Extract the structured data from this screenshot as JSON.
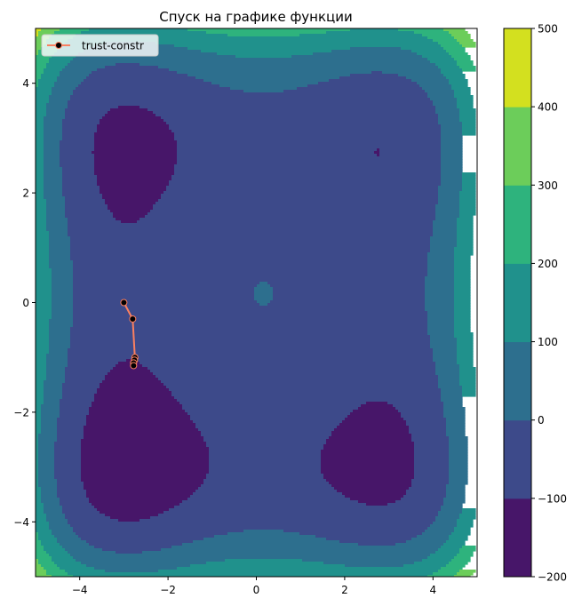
{
  "chart_data": {
    "type": "contour",
    "title": "Спуск на графике функции",
    "xlabel": "",
    "ylabel": "",
    "xlim": [
      -5,
      5
    ],
    "ylim": [
      -5,
      5
    ],
    "x_ticks": [
      -4,
      -2,
      0,
      2,
      4
    ],
    "y_ticks": [
      -4,
      -2,
      0,
      2,
      4
    ],
    "x_tick_labels": [
      "−4",
      "−2",
      "0",
      "2",
      "4"
    ],
    "y_tick_labels": [
      "−4",
      "−2",
      "0",
      "2",
      "4"
    ],
    "levels": [
      -200,
      -100,
      0,
      100,
      200,
      300,
      400,
      500
    ],
    "level_colors": [
      "#471669",
      "#3d4a8a",
      "#2d6f8e",
      "#20918c",
      "#2eb37d",
      "#6ccd5a",
      "#d3e01f"
    ],
    "colorbar_tick_labels": [
      "−200",
      "−100",
      "0",
      "100",
      "200",
      "300",
      "400",
      "500"
    ],
    "grid": false,
    "legend": {
      "position": "upper-left",
      "entries": [
        "trust-constr"
      ]
    },
    "series": [
      {
        "name": "trust-constr",
        "type": "line",
        "color": "#fa8060",
        "marker_color": "#000000",
        "x": [
          -3.0,
          -2.8,
          -2.75,
          -2.76,
          -2.78,
          -2.78
        ],
        "y": [
          0.0,
          -0.3,
          -1.0,
          -1.05,
          -1.1,
          -1.15
        ]
      }
    ]
  }
}
